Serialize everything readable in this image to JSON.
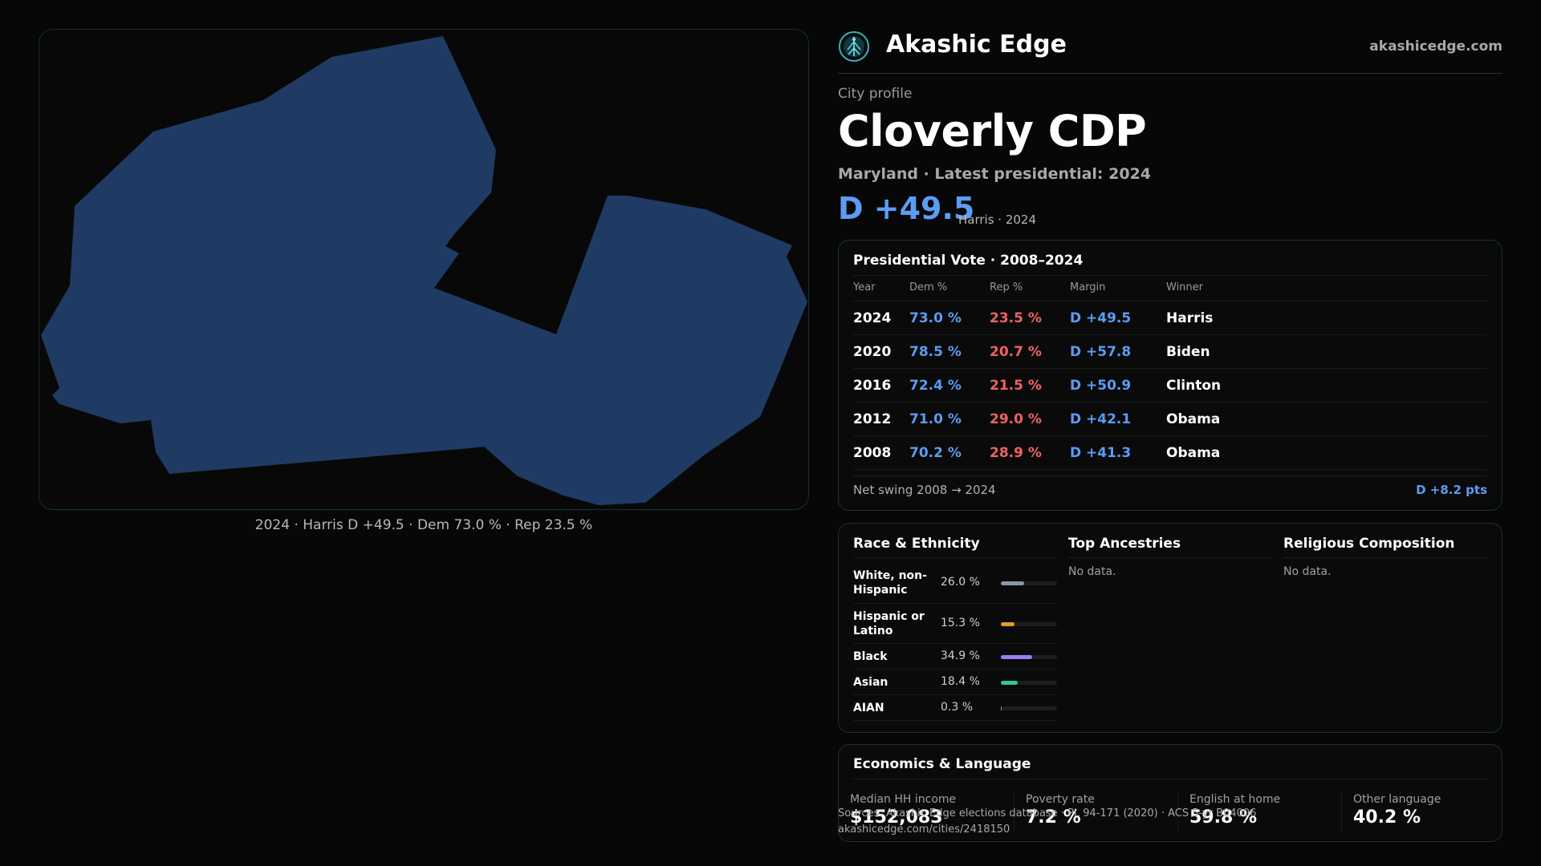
{
  "map": {
    "caption": "2024 · Harris D +49.5 · Dem 73.0 % · Rep 23.5 %",
    "fill_color": "#1f3b63"
  },
  "header": {
    "brand": "Akashic Edge",
    "site": "akashicedge.com",
    "logo_icon": "tree-of-life-icon"
  },
  "profile": {
    "kicker": "City profile",
    "title": "Cloverly CDP",
    "subtitle": "Maryland · Latest presidential: 2024",
    "margin": "D +49.5",
    "margin_note": "Harris · 2024"
  },
  "presidential": {
    "title": "Presidential Vote · 2008–2024",
    "headers": [
      "Year",
      "Dem %",
      "Rep %",
      "Margin",
      "Winner"
    ],
    "rows": [
      {
        "year": "2024",
        "dem": "73.0 %",
        "rep": "23.5 %",
        "margin": "D +49.5",
        "winner": "Harris"
      },
      {
        "year": "2020",
        "dem": "78.5 %",
        "rep": "20.7 %",
        "margin": "D +57.8",
        "winner": "Biden"
      },
      {
        "year": "2016",
        "dem": "72.4 %",
        "rep": "21.5 %",
        "margin": "D +50.9",
        "winner": "Clinton"
      },
      {
        "year": "2012",
        "dem": "71.0 %",
        "rep": "29.0 %",
        "margin": "D +42.1",
        "winner": "Obama"
      },
      {
        "year": "2008",
        "dem": "70.2 %",
        "rep": "28.9 %",
        "margin": "D +41.3",
        "winner": "Obama"
      }
    ],
    "swing_label": "Net swing 2008 → 2024",
    "swing_value": "D +8.2 pts",
    "dem_color": "#5b9cf4",
    "rep_color": "#f06262"
  },
  "race": {
    "title": "Race & Ethnicity",
    "rows": [
      {
        "label": "White, non-Hispanic",
        "pct": "26.0 %",
        "value": 26.0,
        "color": "#8a96a8"
      },
      {
        "label": "Hispanic or Latino",
        "pct": "15.3 %",
        "value": 15.3,
        "color": "#e89a2c"
      },
      {
        "label": "Black",
        "pct": "34.9 %",
        "value": 34.9,
        "color": "#9b7ff0"
      },
      {
        "label": "Asian",
        "pct": "18.4 %",
        "value": 18.4,
        "color": "#2fc79a"
      },
      {
        "label": "AIAN",
        "pct": "0.3 %",
        "value": 0.3,
        "color": "#8a96a8"
      }
    ]
  },
  "ancestries": {
    "title": "Top Ancestries",
    "empty": "No data."
  },
  "religion": {
    "title": "Religious Composition",
    "empty": "No data."
  },
  "economics": {
    "title": "Economics & Language",
    "stats": [
      {
        "label": "Median HH income",
        "value": "$152,083"
      },
      {
        "label": "Poverty rate",
        "value": "7.2 %"
      },
      {
        "label": "English at home",
        "value": "59.8 %"
      },
      {
        "label": "Other language",
        "value": "40.2 %"
      }
    ]
  },
  "footer": {
    "sources": "Sources: Akashic Edge elections database · PL 94-171 (2020) · ACS 5-yr B04006",
    "url": "akashicedge.com/cities/2418150"
  }
}
